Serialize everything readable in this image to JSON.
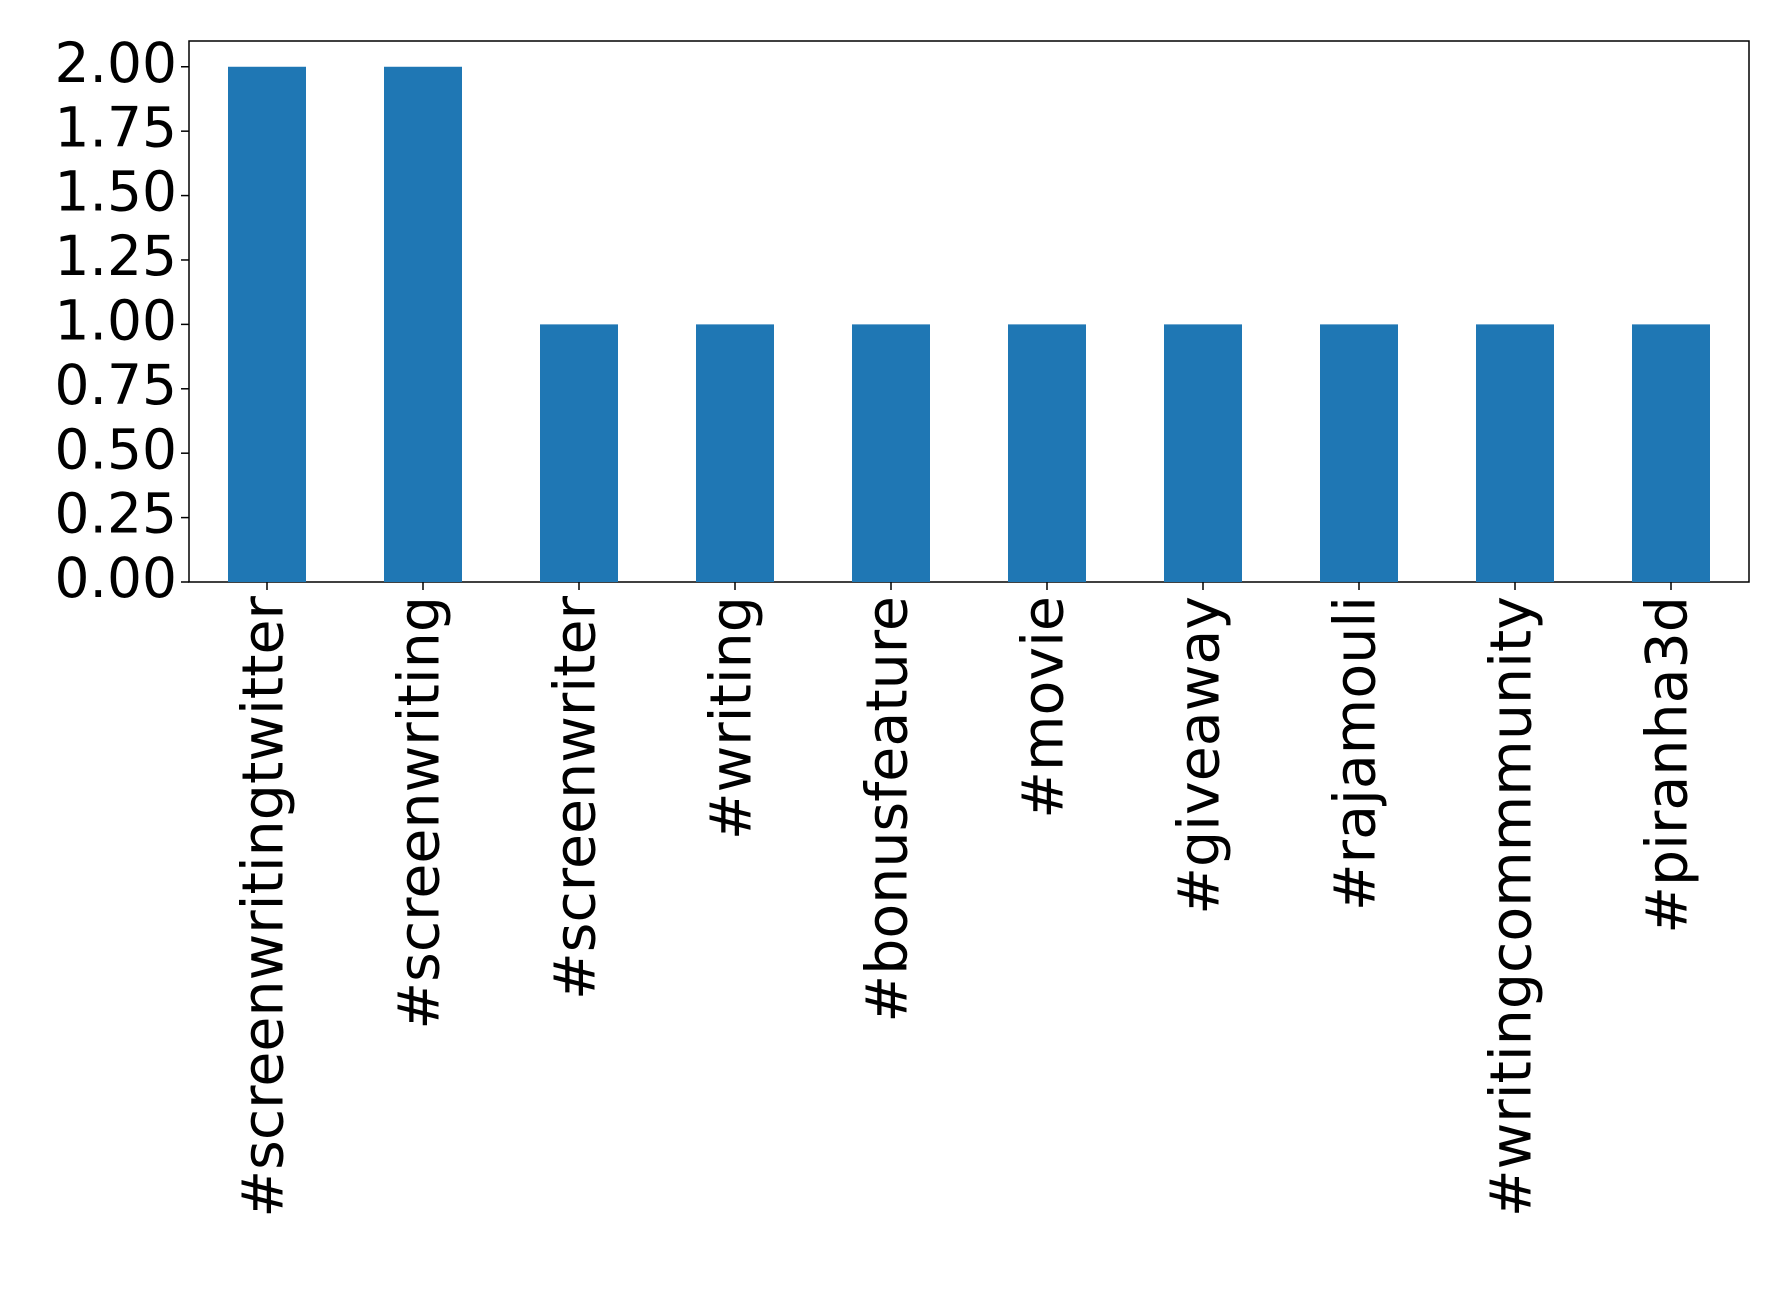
{
  "chart_data": {
    "type": "bar",
    "categories": [
      "#screenwritingtwitter",
      "#screenwriting",
      "#screenwriter",
      "#writing",
      "#bonusfeature",
      "#movie",
      "#giveaway",
      "#rajamouli",
      "#writingcommmunity",
      "#piranha3d"
    ],
    "values": [
      2,
      2,
      1,
      1,
      1,
      1,
      1,
      1,
      1,
      1
    ],
    "color": "#1f77b4",
    "ylim": [
      0,
      2.1
    ],
    "yticks": [
      {
        "value": 0,
        "label": "0.00"
      },
      {
        "value": 0.25,
        "label": "0.25"
      },
      {
        "value": 0.5,
        "label": "0.50"
      },
      {
        "value": 0.75,
        "label": "0.75"
      },
      {
        "value": 1,
        "label": "1.00"
      },
      {
        "value": 1.25,
        "label": "1.25"
      },
      {
        "value": 1.5,
        "label": "1.50"
      },
      {
        "value": 1.75,
        "label": "1.75"
      },
      {
        "value": 2,
        "label": "2.00"
      }
    ],
    "grid": false
  }
}
